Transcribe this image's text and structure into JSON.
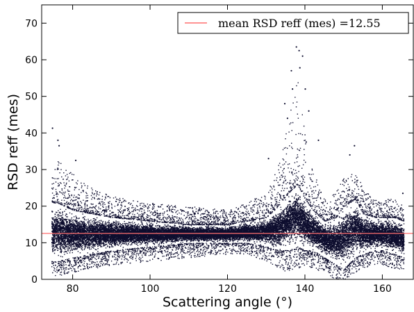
{
  "chart_data": {
    "type": "scatter",
    "xlabel": "Scattering angle  (°)",
    "ylabel": "RSD reff (mes)",
    "xlim": [
      72,
      168
    ],
    "ylim": [
      0,
      75
    ],
    "x_ticks": [
      80,
      100,
      120,
      140,
      160
    ],
    "y_ticks": [
      0,
      10,
      20,
      30,
      40,
      50,
      60,
      70
    ],
    "grid": false,
    "legend": {
      "position": "top-right",
      "entries": [
        {
          "label": "mean RSD reff (mes) =12.55",
          "kind": "line",
          "color": "#ff6f6f"
        }
      ]
    },
    "series": [
      {
        "kind": "scatter",
        "color": "#0d0d2e",
        "x_range": [
          74.5,
          165.5
        ],
        "point_count_estimate": 60000,
        "envelope": {
          "x": [
            74.5,
            76,
            80,
            85,
            90,
            100,
            110,
            120,
            125,
            130,
            133,
            136,
            138,
            140,
            142,
            145,
            148,
            150,
            153,
            155,
            158,
            160,
            163,
            165.5
          ],
          "upper": [
            28,
            33,
            29,
            25,
            23,
            21,
            20,
            19,
            21,
            24,
            32,
            45,
            55,
            42,
            30,
            22,
            24,
            28,
            30,
            25,
            22,
            22,
            22,
            20
          ],
          "lower": [
            1,
            1,
            2,
            3,
            4,
            5,
            6,
            7,
            7,
            5,
            3,
            2,
            3,
            4,
            3,
            2,
            0,
            0,
            2,
            3,
            4,
            4,
            3,
            3
          ],
          "core_upper": [
            21,
            21,
            19,
            18,
            17,
            16,
            15,
            15,
            16,
            17,
            20,
            24,
            26,
            22,
            19,
            16,
            17,
            20,
            22,
            18,
            17,
            17,
            17,
            16
          ],
          "core_lower": [
            5,
            5,
            6,
            7,
            8,
            9,
            10,
            10,
            10,
            9,
            8,
            8,
            9,
            8,
            8,
            6,
            4,
            3,
            6,
            7,
            8,
            8,
            7,
            6
          ]
        },
        "outliers": [
          [
            74.8,
            41.3
          ],
          [
            76.2,
            38
          ],
          [
            76.5,
            36.5
          ],
          [
            80.8,
            32.5
          ],
          [
            136.5,
            57
          ],
          [
            137.8,
            63.5
          ],
          [
            138.5,
            62.5
          ],
          [
            139.4,
            61
          ],
          [
            136.8,
            52
          ],
          [
            134.8,
            48
          ],
          [
            140.1,
            52
          ],
          [
            141,
            46
          ],
          [
            138.7,
            57.8
          ],
          [
            135.5,
            44
          ],
          [
            152.8,
            36.5
          ],
          [
            151.6,
            34
          ],
          [
            165.3,
            23.5
          ],
          [
            130.6,
            33
          ],
          [
            143.5,
            38
          ]
        ]
      },
      {
        "kind": "hline",
        "y": 12.55,
        "color": "#ff6f6f"
      }
    ]
  }
}
